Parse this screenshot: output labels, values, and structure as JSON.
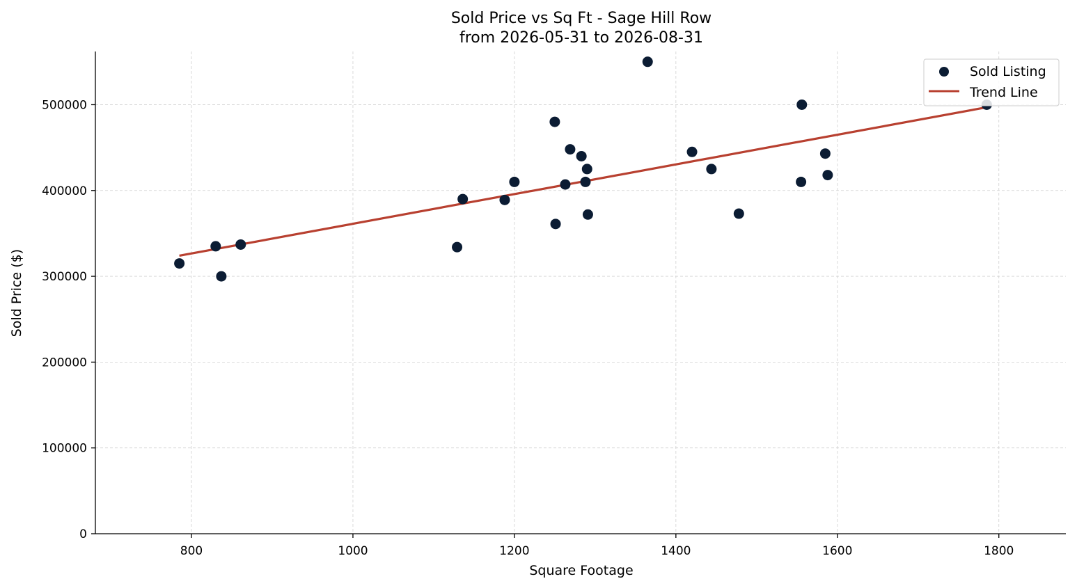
{
  "chart_data": {
    "type": "scatter",
    "title": "Sold Price vs Sq Ft - Sage Hill Row",
    "subtitle": "from 2026-05-31 to 2026-08-31",
    "xlabel": "Square Footage",
    "ylabel": "Sold Price ($)",
    "xlim": [
      681,
      1883
    ],
    "ylim": [
      0,
      562000
    ],
    "xticks": [
      800,
      1000,
      1200,
      1400,
      1600,
      1800
    ],
    "yticks": [
      0,
      100000,
      200000,
      300000,
      400000,
      500000
    ],
    "grid": true,
    "legend_position": "top-right",
    "colors": {
      "points": "#0b1c33",
      "trend": "#b84030"
    },
    "series": [
      {
        "name": "Sold Listing",
        "kind": "scatter",
        "points": [
          [
            785,
            315000
          ],
          [
            830,
            335000
          ],
          [
            837,
            300000
          ],
          [
            861,
            337000
          ],
          [
            1129,
            334000
          ],
          [
            1136,
            390000
          ],
          [
            1188,
            389000
          ],
          [
            1200,
            410000
          ],
          [
            1250,
            480000
          ],
          [
            1251,
            361000
          ],
          [
            1263,
            407000
          ],
          [
            1269,
            448000
          ],
          [
            1283,
            440000
          ],
          [
            1288,
            410000
          ],
          [
            1290,
            425000
          ],
          [
            1291,
            372000
          ],
          [
            1365,
            550000
          ],
          [
            1420,
            445000
          ],
          [
            1444,
            425000
          ],
          [
            1478,
            373000
          ],
          [
            1555,
            410000
          ],
          [
            1556,
            500000
          ],
          [
            1585,
            443000
          ],
          [
            1588,
            418000
          ],
          [
            1785,
            500000
          ]
        ]
      },
      {
        "name": "Trend Line",
        "kind": "line",
        "points": [
          [
            785,
            324000
          ],
          [
            1785,
            497000
          ]
        ]
      }
    ]
  }
}
